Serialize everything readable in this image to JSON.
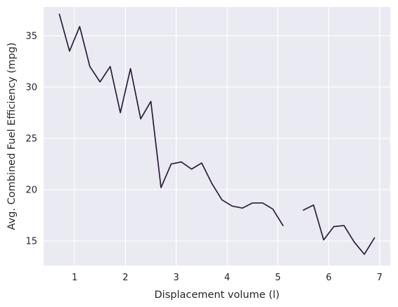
{
  "chart_data": {
    "type": "line",
    "title": "",
    "xlabel": "Displacement volume (l)",
    "ylabel": "Avg. Combined Fuel Efficiency (mpg)",
    "xlim": [
      0.39,
      7.21
    ],
    "ylim": [
      12.6,
      37.8
    ],
    "xticks": [
      1,
      2,
      3,
      4,
      5,
      6,
      7
    ],
    "yticks": [
      15,
      20,
      25,
      30,
      35
    ],
    "grid": true,
    "colors": {
      "background": "#eaeaf2",
      "grid": "#ffffff",
      "line": "#2b1d3b",
      "text": "#262626"
    },
    "segments": [
      {
        "x": [
          0.7,
          0.9,
          1.1,
          1.3,
          1.5,
          1.7,
          1.9,
          2.1,
          2.3,
          2.5,
          2.7,
          2.9,
          3.1,
          3.3,
          3.5,
          3.7,
          3.9,
          4.1,
          4.3,
          4.5,
          4.7,
          4.9,
          5.1
        ],
        "y": [
          37.1,
          33.5,
          35.9,
          32.0,
          30.5,
          32.0,
          27.5,
          31.8,
          26.9,
          28.6,
          20.2,
          22.5,
          22.7,
          22.0,
          22.6,
          20.6,
          19.0,
          18.4,
          18.2,
          18.7,
          18.7,
          18.1,
          16.5
        ]
      },
      {
        "x": [
          5.5,
          5.7,
          5.9,
          6.1,
          6.3,
          6.5,
          6.7,
          6.9
        ],
        "y": [
          18.0,
          18.5,
          15.1,
          16.4,
          16.5,
          14.9,
          13.7,
          15.3
        ]
      }
    ]
  }
}
